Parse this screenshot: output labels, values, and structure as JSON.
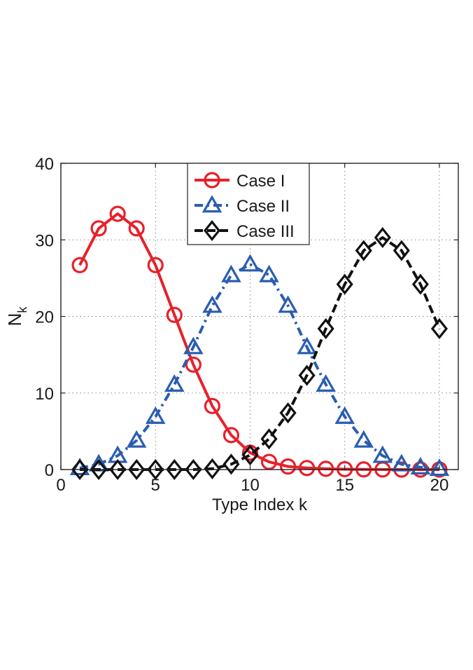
{
  "chart_data": {
    "type": "line",
    "xlabel": "Type Index k",
    "ylabel": "N",
    "ylabel_subscript": "k",
    "xlim": [
      0,
      21
    ],
    "ylim": [
      0,
      40
    ],
    "xticks": [
      0,
      5,
      10,
      15,
      20
    ],
    "yticks": [
      0,
      10,
      20,
      30,
      40
    ],
    "grid": true,
    "legend_position": "top-center",
    "x": [
      1,
      2,
      3,
      4,
      5,
      6,
      7,
      8,
      9,
      10,
      11,
      12,
      13,
      14,
      15,
      16,
      17,
      18,
      19,
      20
    ],
    "series": [
      {
        "name": "Case I",
        "color": "#e8202a",
        "marker": "circle",
        "line": "solid",
        "values": [
          26.7,
          31.5,
          33.4,
          31.5,
          26.7,
          20.2,
          13.7,
          8.3,
          4.5,
          2.2,
          1.0,
          0.4,
          0.2,
          0.1,
          0.05,
          0.02,
          0.01,
          0.0,
          0.0,
          0.0
        ]
      },
      {
        "name": "Case II",
        "color": "#2a5db0",
        "marker": "triangle",
        "line": "dashdot",
        "values": [
          0.2,
          0.7,
          1.8,
          3.8,
          6.9,
          11.1,
          16.0,
          21.4,
          25.4,
          26.8,
          25.4,
          21.4,
          16.0,
          11.1,
          6.9,
          3.8,
          1.8,
          0.7,
          0.3,
          0.1
        ]
      },
      {
        "name": "Case III",
        "color": "#111111",
        "marker": "diamond",
        "line": "dashed",
        "values": [
          0.0,
          0.0,
          0.0,
          0.0,
          0.0,
          0.0,
          0.0,
          0.1,
          0.7,
          1.9,
          4.0,
          7.4,
          12.3,
          18.4,
          24.2,
          28.6,
          30.3,
          28.6,
          24.2,
          18.4
        ]
      }
    ]
  }
}
